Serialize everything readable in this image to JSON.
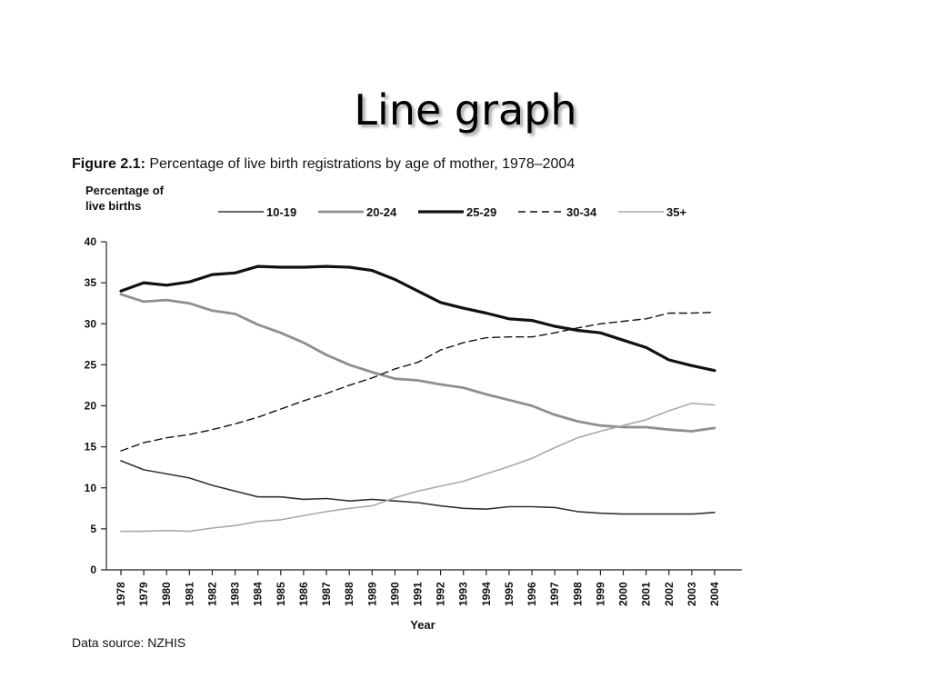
{
  "slide": {
    "title": "Line graph"
  },
  "figure": {
    "label": "Figure 2.1:",
    "caption": "Percentage of live birth registrations by age of mother, 1978–2004",
    "source": "Data source: NZHIS"
  },
  "chart_data": {
    "type": "line",
    "title": "",
    "ylabel_lines": [
      "Percentage of",
      "live births"
    ],
    "xlabel": "Year",
    "ylim": [
      0,
      40
    ],
    "yticks": [
      0,
      5,
      10,
      15,
      20,
      25,
      30,
      35,
      40
    ],
    "grid": false,
    "legend_position": "top",
    "x": [
      "1978",
      "1979",
      "1980",
      "1981",
      "1982",
      "1983",
      "1984",
      "1985",
      "1986",
      "1987",
      "1988",
      "1989",
      "1990",
      "1991",
      "1992",
      "1993",
      "1994",
      "1995",
      "1996",
      "1997",
      "1998",
      "1999",
      "2000",
      "2001",
      "2002",
      "2003",
      "2004"
    ],
    "series": [
      {
        "name": "10-19",
        "color": "#333333",
        "dash": "solid",
        "values": [
          13.3,
          12.2,
          11.7,
          11.2,
          10.3,
          9.6,
          8.9,
          8.9,
          8.6,
          8.7,
          8.4,
          8.6,
          8.4,
          8.2,
          7.8,
          7.5,
          7.4,
          7.7,
          7.7,
          7.6,
          7.1,
          6.9,
          6.8,
          6.8,
          6.8,
          6.8,
          7.0
        ]
      },
      {
        "name": "20-24",
        "color": "#8f8f8f",
        "dash": "solid",
        "values": [
          33.6,
          32.7,
          32.9,
          32.5,
          31.6,
          31.2,
          29.9,
          28.9,
          27.7,
          26.2,
          25.0,
          24.1,
          23.3,
          23.1,
          22.6,
          22.2,
          21.4,
          20.7,
          20.0,
          18.9,
          18.1,
          17.6,
          17.4,
          17.4,
          17.1,
          16.9,
          17.3
        ]
      },
      {
        "name": "25-29",
        "color": "#111111",
        "dash": "solid",
        "values": [
          34.0,
          35.0,
          34.7,
          35.1,
          36.0,
          36.2,
          37.0,
          36.9,
          36.9,
          37.0,
          36.9,
          36.5,
          35.4,
          34.0,
          32.6,
          31.9,
          31.3,
          30.6,
          30.4,
          29.7,
          29.2,
          28.9,
          28.0,
          27.1,
          25.6,
          24.9,
          24.3
        ]
      },
      {
        "name": "30-34",
        "color": "#111111",
        "dash": "dashed",
        "values": [
          14.5,
          15.5,
          16.1,
          16.5,
          17.1,
          17.8,
          18.6,
          19.6,
          20.6,
          21.5,
          22.5,
          23.4,
          24.5,
          25.3,
          26.8,
          27.7,
          28.3,
          28.4,
          28.4,
          28.9,
          29.5,
          30.0,
          30.3,
          30.6,
          31.3,
          31.3,
          31.4
        ]
      },
      {
        "name": "35+",
        "color": "#a9a9a9",
        "dash": "solid",
        "values": [
          4.7,
          4.7,
          4.8,
          4.7,
          5.1,
          5.4,
          5.9,
          6.1,
          6.6,
          7.1,
          7.5,
          7.8,
          8.8,
          9.6,
          10.2,
          10.8,
          11.7,
          12.6,
          13.6,
          14.9,
          16.1,
          16.9,
          17.6,
          18.3,
          19.4,
          20.3,
          20.1
        ]
      }
    ]
  }
}
